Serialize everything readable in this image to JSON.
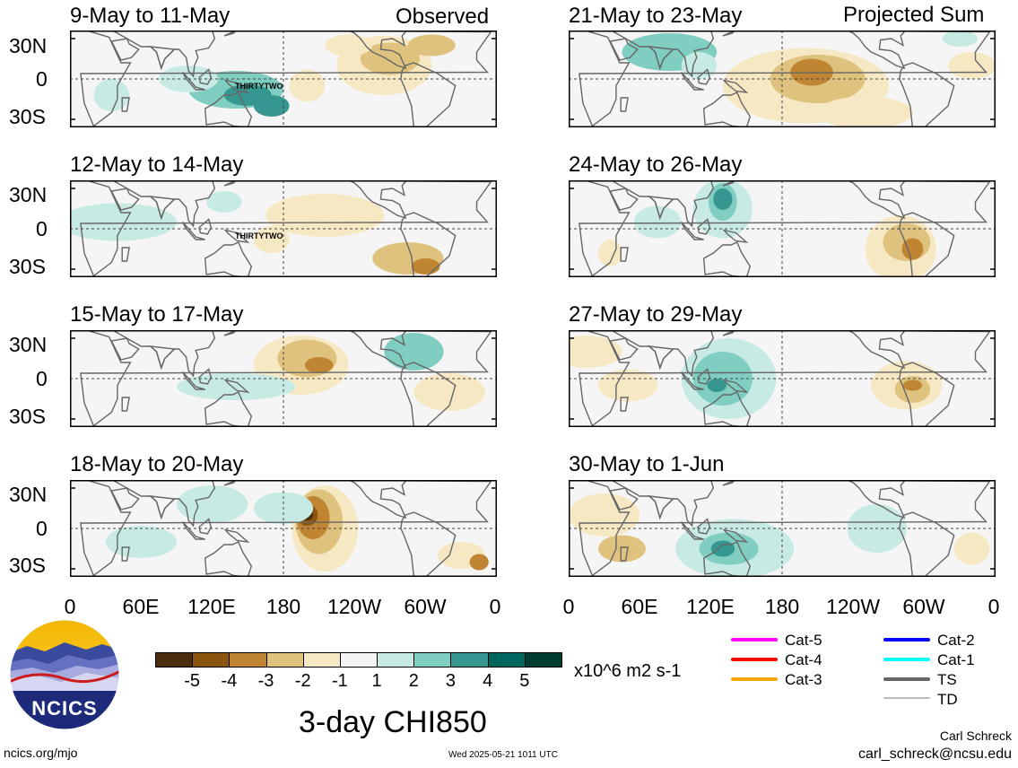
{
  "header": {
    "observed_label": "Observed",
    "projected_label": "Projected Sum"
  },
  "panels": [
    {
      "title": "9-May to 11-May",
      "storm": "THIRTYTWO"
    },
    {
      "title": "12-May to 14-May",
      "storm": "THIRTYTWO"
    },
    {
      "title": "15-May to 17-May",
      "storm": ""
    },
    {
      "title": "18-May to 20-May",
      "storm": ""
    },
    {
      "title": "21-May to 23-May",
      "storm": ""
    },
    {
      "title": "24-May to 26-May",
      "storm": ""
    },
    {
      "title": "27-May to 29-May",
      "storm": ""
    },
    {
      "title": "30-May to 1-Jun",
      "storm": ""
    }
  ],
  "lat_labels": [
    "30N",
    "0",
    "30S"
  ],
  "lon_labels": [
    "0",
    "60E",
    "120E",
    "180",
    "120W",
    "60W",
    "0"
  ],
  "colorbar": {
    "colors": [
      "#4a2d0c",
      "#8a560f",
      "#bf8532",
      "#dfc27d",
      "#f6e8c3",
      "#f5f5f5",
      "#c7eae5",
      "#80cdc1",
      "#35978f",
      "#01665e",
      "#003c30"
    ],
    "ticks": [
      "-5",
      "-4",
      "-3",
      "-2",
      "-1",
      "1",
      "2",
      "3",
      "4",
      "5"
    ],
    "units": "x10^6 m2 s-1"
  },
  "storm_legend": [
    {
      "label": "Cat-5",
      "color": "#ff00ff"
    },
    {
      "label": "Cat-4",
      "color": "#ff0000"
    },
    {
      "label": "Cat-3",
      "color": "#ffa500"
    },
    {
      "label": "Cat-2",
      "color": "#0000ff"
    },
    {
      "label": "Cat-1",
      "color": "#00ffff"
    },
    {
      "label": "TS",
      "color": "#666666"
    },
    {
      "label": "TD",
      "color": "#bbbbbb"
    }
  ],
  "footer": {
    "main_title": "3-day CHI850",
    "left_url": "ncics.org/mjo",
    "timestamp": "Wed 2025-05-21 1011 UTC",
    "author": "Carl Schreck",
    "email": "carl_schreck@ncsu.edu"
  },
  "logo": {
    "text": "NCICS"
  }
}
